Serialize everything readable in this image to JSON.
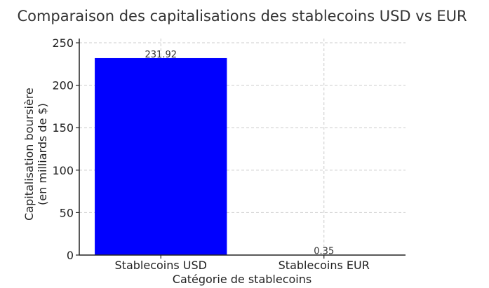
{
  "chart_data": {
    "type": "bar",
    "title": "Comparaison des capitalisations des stablecoins USD vs EUR",
    "xlabel": "Catégorie de stablecoins",
    "ylabel_line1": "Capitalisation boursière",
    "ylabel_line2": "(en milliards de $)",
    "categories": [
      "Stablecoins USD",
      "Stablecoins EUR"
    ],
    "values": [
      231.92,
      0.35
    ],
    "value_labels": [
      "231.92",
      "0.35"
    ],
    "bar_color": "#0000ff",
    "ylim": [
      0,
      255
    ],
    "yticks": [
      0,
      50,
      100,
      150,
      200,
      250
    ],
    "grid": true
  }
}
